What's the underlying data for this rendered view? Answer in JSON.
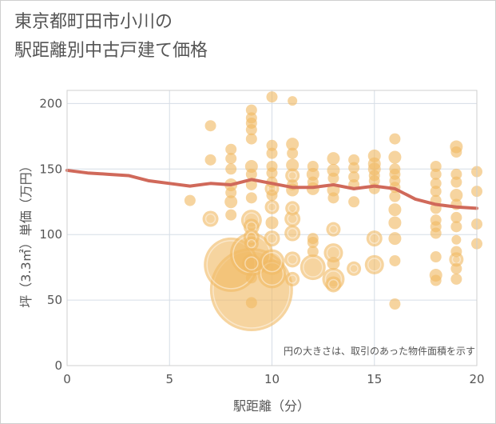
{
  "title_lines": [
    "東京都町田市小川の",
    "駅距離別中古戸建て価格"
  ],
  "chart_data": {
    "type": "scatter",
    "title": "東京都町田市小川の駅距離別中古戸建て価格",
    "xlabel": "駅距離（分）",
    "ylabel": "坪（3.3㎡）単価（万円）",
    "xlim": [
      0,
      20
    ],
    "ylim": [
      0,
      210
    ],
    "xticks": [
      0,
      5,
      10,
      15,
      20
    ],
    "yticks": [
      0,
      50,
      100,
      150,
      200
    ],
    "grid": true,
    "annotation": "円の大きさは、取引のあった物件面積を示す",
    "colors": {
      "bubble": "#f0b964",
      "line": "#d0695a"
    },
    "bubbles": [
      {
        "x": 6,
        "y": 126,
        "s": 7
      },
      {
        "x": 7,
        "y": 183,
        "s": 7
      },
      {
        "x": 7,
        "y": 157,
        "s": 7
      },
      {
        "x": 7,
        "y": 112,
        "s": 10
      },
      {
        "x": 8,
        "y": 165,
        "s": 7
      },
      {
        "x": 8,
        "y": 158,
        "s": 7
      },
      {
        "x": 8,
        "y": 150,
        "s": 7
      },
      {
        "x": 8,
        "y": 138,
        "s": 8
      },
      {
        "x": 8,
        "y": 132,
        "s": 7
      },
      {
        "x": 8,
        "y": 125,
        "s": 8
      },
      {
        "x": 8,
        "y": 115,
        "s": 7
      },
      {
        "x": 8,
        "y": 77,
        "s": 34
      },
      {
        "x": 9,
        "y": 195,
        "s": 7
      },
      {
        "x": 9,
        "y": 189,
        "s": 7
      },
      {
        "x": 9,
        "y": 185,
        "s": 7
      },
      {
        "x": 9,
        "y": 180,
        "s": 7
      },
      {
        "x": 9,
        "y": 173,
        "s": 7
      },
      {
        "x": 9,
        "y": 152,
        "s": 8
      },
      {
        "x": 9,
        "y": 146,
        "s": 7
      },
      {
        "x": 9,
        "y": 138,
        "s": 7
      },
      {
        "x": 9,
        "y": 128,
        "s": 7
      },
      {
        "x": 9,
        "y": 111,
        "s": 13
      },
      {
        "x": 9,
        "y": 106,
        "s": 10
      },
      {
        "x": 9,
        "y": 98,
        "s": 10
      },
      {
        "x": 9,
        "y": 93,
        "s": 9
      },
      {
        "x": 9,
        "y": 85,
        "s": 27
      },
      {
        "x": 9,
        "y": 78,
        "s": 12
      },
      {
        "x": 9,
        "y": 67,
        "s": 7
      },
      {
        "x": 9,
        "y": 58,
        "s": 52
      },
      {
        "x": 9,
        "y": 48,
        "s": 7
      },
      {
        "x": 10,
        "y": 205,
        "s": 7
      },
      {
        "x": 10,
        "y": 168,
        "s": 7
      },
      {
        "x": 10,
        "y": 162,
        "s": 7
      },
      {
        "x": 10,
        "y": 152,
        "s": 7
      },
      {
        "x": 10,
        "y": 147,
        "s": 7
      },
      {
        "x": 10,
        "y": 140,
        "s": 7
      },
      {
        "x": 10,
        "y": 135,
        "s": 9
      },
      {
        "x": 10,
        "y": 130,
        "s": 7
      },
      {
        "x": 10,
        "y": 121,
        "s": 9
      },
      {
        "x": 10,
        "y": 109,
        "s": 8
      },
      {
        "x": 10,
        "y": 97,
        "s": 10
      },
      {
        "x": 10,
        "y": 79,
        "s": 16
      },
      {
        "x": 10,
        "y": 70,
        "s": 18
      },
      {
        "x": 11,
        "y": 202,
        "s": 6
      },
      {
        "x": 11,
        "y": 169,
        "s": 8
      },
      {
        "x": 11,
        "y": 162,
        "s": 7
      },
      {
        "x": 11,
        "y": 153,
        "s": 8
      },
      {
        "x": 11,
        "y": 145,
        "s": 9
      },
      {
        "x": 11,
        "y": 138,
        "s": 7
      },
      {
        "x": 11,
        "y": 134,
        "s": 8
      },
      {
        "x": 11,
        "y": 120,
        "s": 9
      },
      {
        "x": 11,
        "y": 112,
        "s": 10
      },
      {
        "x": 11,
        "y": 101,
        "s": 10
      },
      {
        "x": 11,
        "y": 81,
        "s": 10
      },
      {
        "x": 11,
        "y": 66,
        "s": 9
      },
      {
        "x": 12,
        "y": 152,
        "s": 7
      },
      {
        "x": 12,
        "y": 146,
        "s": 8
      },
      {
        "x": 12,
        "y": 140,
        "s": 7
      },
      {
        "x": 12,
        "y": 135,
        "s": 8
      },
      {
        "x": 12,
        "y": 97,
        "s": 7
      },
      {
        "x": 12,
        "y": 94,
        "s": 7
      },
      {
        "x": 12,
        "y": 87,
        "s": 7
      },
      {
        "x": 12,
        "y": 75,
        "s": 16
      },
      {
        "x": 13,
        "y": 158,
        "s": 8
      },
      {
        "x": 13,
        "y": 149,
        "s": 8
      },
      {
        "x": 13,
        "y": 143,
        "s": 7
      },
      {
        "x": 13,
        "y": 134,
        "s": 8
      },
      {
        "x": 13,
        "y": 128,
        "s": 7
      },
      {
        "x": 13,
        "y": 104,
        "s": 9
      },
      {
        "x": 13,
        "y": 86,
        "s": 12
      },
      {
        "x": 13,
        "y": 78,
        "s": 8
      },
      {
        "x": 13,
        "y": 66,
        "s": 14
      },
      {
        "x": 13,
        "y": 62,
        "s": 10
      },
      {
        "x": 14,
        "y": 157,
        "s": 7
      },
      {
        "x": 14,
        "y": 151,
        "s": 7
      },
      {
        "x": 14,
        "y": 144,
        "s": 7
      },
      {
        "x": 14,
        "y": 138,
        "s": 7
      },
      {
        "x": 14,
        "y": 125,
        "s": 7
      },
      {
        "x": 14,
        "y": 74,
        "s": 9
      },
      {
        "x": 15,
        "y": 160,
        "s": 8
      },
      {
        "x": 15,
        "y": 154,
        "s": 8
      },
      {
        "x": 15,
        "y": 150,
        "s": 8
      },
      {
        "x": 15,
        "y": 145,
        "s": 7
      },
      {
        "x": 15,
        "y": 141,
        "s": 7
      },
      {
        "x": 15,
        "y": 135,
        "s": 7
      },
      {
        "x": 15,
        "y": 97,
        "s": 10
      },
      {
        "x": 15,
        "y": 77,
        "s": 12
      },
      {
        "x": 16,
        "y": 173,
        "s": 7
      },
      {
        "x": 16,
        "y": 159,
        "s": 8
      },
      {
        "x": 16,
        "y": 150,
        "s": 7
      },
      {
        "x": 16,
        "y": 146,
        "s": 7
      },
      {
        "x": 16,
        "y": 141,
        "s": 7
      },
      {
        "x": 16,
        "y": 136,
        "s": 7
      },
      {
        "x": 16,
        "y": 129,
        "s": 7
      },
      {
        "x": 16,
        "y": 119,
        "s": 8
      },
      {
        "x": 16,
        "y": 109,
        "s": 8
      },
      {
        "x": 16,
        "y": 97,
        "s": 8
      },
      {
        "x": 16,
        "y": 80,
        "s": 7
      },
      {
        "x": 16,
        "y": 47,
        "s": 7
      },
      {
        "x": 18,
        "y": 152,
        "s": 7
      },
      {
        "x": 18,
        "y": 146,
        "s": 7
      },
      {
        "x": 18,
        "y": 139,
        "s": 7
      },
      {
        "x": 18,
        "y": 133,
        "s": 7
      },
      {
        "x": 18,
        "y": 126,
        "s": 7
      },
      {
        "x": 18,
        "y": 120,
        "s": 7
      },
      {
        "x": 18,
        "y": 111,
        "s": 7
      },
      {
        "x": 18,
        "y": 106,
        "s": 7
      },
      {
        "x": 18,
        "y": 101,
        "s": 7
      },
      {
        "x": 18,
        "y": 83,
        "s": 7
      },
      {
        "x": 18,
        "y": 69,
        "s": 8
      },
      {
        "x": 18,
        "y": 65,
        "s": 7
      },
      {
        "x": 19,
        "y": 167,
        "s": 8
      },
      {
        "x": 19,
        "y": 163,
        "s": 7
      },
      {
        "x": 19,
        "y": 146,
        "s": 7
      },
      {
        "x": 19,
        "y": 140,
        "s": 7
      },
      {
        "x": 19,
        "y": 130,
        "s": 8
      },
      {
        "x": 19,
        "y": 123,
        "s": 7
      },
      {
        "x": 19,
        "y": 113,
        "s": 7
      },
      {
        "x": 19,
        "y": 106,
        "s": 7
      },
      {
        "x": 19,
        "y": 96,
        "s": 6
      },
      {
        "x": 19,
        "y": 87,
        "s": 7
      },
      {
        "x": 19,
        "y": 81,
        "s": 9
      },
      {
        "x": 19,
        "y": 74,
        "s": 7
      },
      {
        "x": 19,
        "y": 66,
        "s": 7
      },
      {
        "x": 20,
        "y": 148,
        "s": 7
      },
      {
        "x": 20,
        "y": 133,
        "s": 7
      },
      {
        "x": 20,
        "y": 108,
        "s": 7
      },
      {
        "x": 20,
        "y": 93,
        "s": 7
      }
    ],
    "trend": {
      "name": "",
      "x": [
        0,
        1,
        2,
        3,
        4,
        5,
        6,
        7,
        8,
        9,
        10,
        11,
        12,
        13,
        14,
        15,
        16,
        17,
        18,
        19,
        20
      ],
      "y": [
        149,
        147,
        146,
        145,
        141,
        139,
        137,
        139,
        138,
        142,
        139,
        136,
        136,
        138,
        135,
        137,
        135,
        127,
        123,
        121,
        120
      ]
    }
  }
}
